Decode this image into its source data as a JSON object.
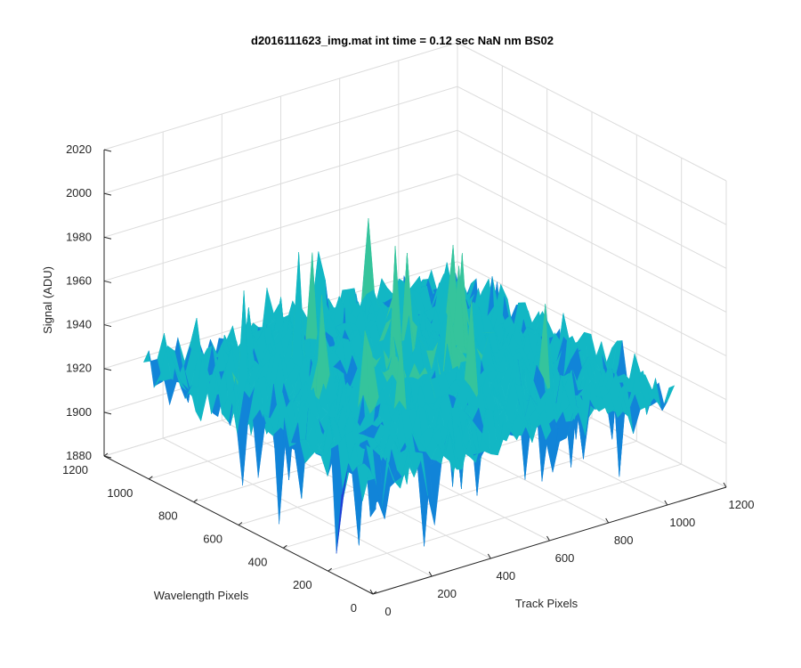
{
  "chart_data": {
    "type": "surface",
    "title": "d2016111623_img.mat int time = 0.12 sec  NaN nm BS02",
    "xlabel": "Track Pixels",
    "ylabel": "Wavelength Pixels",
    "zlabel": "Signal (ADU)",
    "xlim": [
      0,
      1200
    ],
    "ylim": [
      0,
      1200
    ],
    "zlim": [
      1880,
      2020
    ],
    "xticks": [
      0,
      200,
      400,
      600,
      800,
      1000,
      1200
    ],
    "yticks": [
      0,
      200,
      400,
      600,
      800,
      1000,
      1200
    ],
    "zticks": [
      1880,
      1900,
      1920,
      1940,
      1960,
      1980,
      2000,
      2020
    ],
    "xtick_labels": [
      "0",
      "200",
      "400",
      "600",
      "800",
      "1000",
      "1200"
    ],
    "ytick_labels": [
      "0",
      "200",
      "400",
      "600",
      "800",
      "1000",
      "1200"
    ],
    "ztick_labels": [
      "1880",
      "1900",
      "1920",
      "1940",
      "1960",
      "1980",
      "2000",
      "2020"
    ],
    "x_range": [
      0,
      1024
    ],
    "y_range": [
      0,
      1024
    ],
    "mean_signal": 1935,
    "noise_amplitude": 10,
    "min_signal_approx": 1890,
    "max_signal_approx": 2005,
    "colormap": [
      "#1f3fd6",
      "#1184d8",
      "#12b7c4",
      "#35c49c",
      "#8fc66a",
      "#d9c046"
    ],
    "grid": true
  }
}
